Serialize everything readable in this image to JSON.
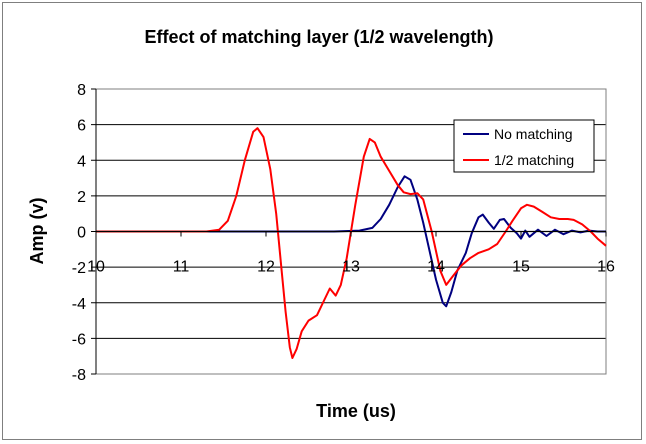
{
  "chart_data": {
    "type": "line",
    "title": "Effect of matching layer (1/2 wavelength)",
    "xlabel": "Time (us)",
    "ylabel": "Amp (v)",
    "xlim": [
      10,
      16
    ],
    "ylim": [
      -8,
      8
    ],
    "x_ticks": [
      10,
      11,
      12,
      13,
      14,
      15,
      16
    ],
    "y_ticks": [
      -8,
      -6,
      -4,
      -2,
      0,
      2,
      4,
      6,
      8
    ],
    "grid": "horizontal",
    "legend_position": "top-right",
    "series": [
      {
        "name": "No matching",
        "color": "#000080",
        "points": [
          [
            10,
            0
          ],
          [
            11,
            0
          ],
          [
            12,
            0
          ],
          [
            12.8,
            0
          ],
          [
            13.1,
            0.05
          ],
          [
            13.25,
            0.2
          ],
          [
            13.35,
            0.7
          ],
          [
            13.45,
            1.5
          ],
          [
            13.55,
            2.5
          ],
          [
            13.63,
            3.1
          ],
          [
            13.7,
            2.9
          ],
          [
            13.78,
            1.8
          ],
          [
            13.85,
            0.5
          ],
          [
            13.92,
            -1.0
          ],
          [
            14.0,
            -2.7
          ],
          [
            14.08,
            -4.0
          ],
          [
            14.12,
            -4.2
          ],
          [
            14.18,
            -3.4
          ],
          [
            14.25,
            -2.2
          ],
          [
            14.35,
            -1.2
          ],
          [
            14.42,
            -0.1
          ],
          [
            14.5,
            0.8
          ],
          [
            14.55,
            0.95
          ],
          [
            14.62,
            0.5
          ],
          [
            14.68,
            0.15
          ],
          [
            14.75,
            0.65
          ],
          [
            14.8,
            0.7
          ],
          [
            14.88,
            0.2
          ],
          [
            14.95,
            -0.1
          ],
          [
            15.0,
            -0.4
          ],
          [
            15.05,
            0.05
          ],
          [
            15.1,
            -0.3
          ],
          [
            15.2,
            0.1
          ],
          [
            15.3,
            -0.25
          ],
          [
            15.4,
            0.1
          ],
          [
            15.5,
            -0.15
          ],
          [
            15.6,
            0.05
          ],
          [
            15.7,
            -0.05
          ],
          [
            15.8,
            0.05
          ],
          [
            15.9,
            0
          ],
          [
            16,
            0
          ]
        ]
      },
      {
        "name": "1/2 matching",
        "color": "#ff0000",
        "points": [
          [
            10,
            0
          ],
          [
            11,
            0
          ],
          [
            11.3,
            0
          ],
          [
            11.45,
            0.1
          ],
          [
            11.55,
            0.6
          ],
          [
            11.65,
            2.0
          ],
          [
            11.75,
            4.0
          ],
          [
            11.85,
            5.6
          ],
          [
            11.9,
            5.8
          ],
          [
            11.97,
            5.3
          ],
          [
            12.05,
            3.5
          ],
          [
            12.12,
            1.0
          ],
          [
            12.18,
            -2.0
          ],
          [
            12.23,
            -4.5
          ],
          [
            12.28,
            -6.5
          ],
          [
            12.31,
            -7.1
          ],
          [
            12.36,
            -6.6
          ],
          [
            12.42,
            -5.6
          ],
          [
            12.5,
            -5.0
          ],
          [
            12.6,
            -4.7
          ],
          [
            12.68,
            -3.9
          ],
          [
            12.75,
            -3.2
          ],
          [
            12.82,
            -3.6
          ],
          [
            12.88,
            -3.0
          ],
          [
            12.95,
            -1.5
          ],
          [
            13.05,
            1.5
          ],
          [
            13.15,
            4.2
          ],
          [
            13.22,
            5.2
          ],
          [
            13.28,
            5.0
          ],
          [
            13.35,
            4.2
          ],
          [
            13.45,
            3.4
          ],
          [
            13.55,
            2.6
          ],
          [
            13.62,
            2.2
          ],
          [
            13.7,
            2.1
          ],
          [
            13.78,
            2.15
          ],
          [
            13.85,
            1.8
          ],
          [
            13.95,
            0.0
          ],
          [
            14.05,
            -2.2
          ],
          [
            14.12,
            -3.0
          ],
          [
            14.2,
            -2.5
          ],
          [
            14.3,
            -1.9
          ],
          [
            14.4,
            -1.5
          ],
          [
            14.5,
            -1.2
          ],
          [
            14.62,
            -1.0
          ],
          [
            14.72,
            -0.7
          ],
          [
            14.82,
            0.0
          ],
          [
            14.9,
            0.6
          ],
          [
            15.0,
            1.3
          ],
          [
            15.07,
            1.5
          ],
          [
            15.15,
            1.4
          ],
          [
            15.25,
            1.1
          ],
          [
            15.35,
            0.8
          ],
          [
            15.45,
            0.7
          ],
          [
            15.55,
            0.7
          ],
          [
            15.62,
            0.65
          ],
          [
            15.72,
            0.4
          ],
          [
            15.82,
            0.0
          ],
          [
            15.9,
            -0.4
          ],
          [
            16,
            -0.8
          ]
        ]
      }
    ]
  }
}
